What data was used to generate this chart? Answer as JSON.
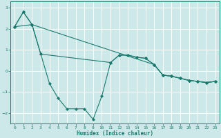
{
  "xlabel": "Humidex (Indice chaleur)",
  "background_color": "#cce8e8",
  "grid_color": "#ffffff",
  "line_color": "#1a7a6e",
  "xlim": [
    -0.5,
    23.5
  ],
  "ylim": [
    -2.5,
    3.3
  ],
  "yticks": [
    -2,
    -1,
    0,
    1,
    2,
    3
  ],
  "xticks": [
    0,
    1,
    2,
    3,
    4,
    5,
    6,
    7,
    8,
    9,
    10,
    11,
    12,
    13,
    14,
    15,
    16,
    17,
    18,
    19,
    20,
    21,
    22,
    23
  ],
  "series": [
    {
      "x": [
        0,
        1,
        2,
        3,
        4,
        5,
        6,
        7,
        8,
        9,
        10,
        11,
        12,
        13,
        14,
        15,
        16,
        17,
        18,
        19,
        20,
        21,
        22,
        23
      ],
      "y": [
        2.1,
        2.8,
        2.2,
        0.8,
        -0.6,
        -1.3,
        -1.8,
        -1.8,
        -1.8,
        -2.3,
        -1.2,
        0.4,
        0.75,
        0.75,
        0.65,
        0.6,
        0.3,
        -0.2,
        -0.25,
        -0.35,
        -0.45,
        -0.5,
        -0.55,
        -0.5
      ]
    },
    {
      "x": [
        0,
        1,
        2,
        16,
        17,
        18,
        19,
        20,
        21,
        22,
        23
      ],
      "y": [
        2.1,
        2.8,
        2.2,
        0.3,
        -0.2,
        -0.25,
        -0.35,
        -0.45,
        -0.5,
        -0.55,
        -0.5
      ]
    },
    {
      "x": [
        0,
        2,
        3,
        11,
        12,
        13,
        14,
        15,
        16,
        17,
        18,
        19,
        20,
        21,
        22,
        23
      ],
      "y": [
        2.1,
        2.2,
        0.8,
        0.4,
        0.75,
        0.75,
        0.65,
        0.6,
        0.3,
        -0.2,
        -0.25,
        -0.35,
        -0.45,
        -0.5,
        -0.55,
        -0.5
      ]
    }
  ]
}
